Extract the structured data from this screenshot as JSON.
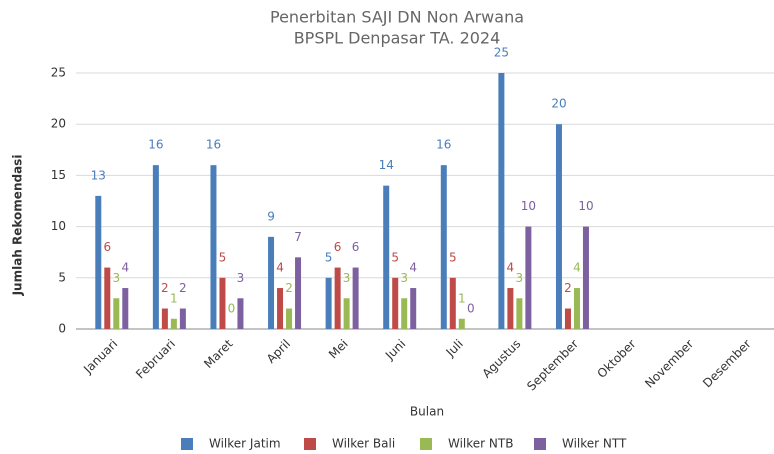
{
  "chart_data": {
    "type": "bar",
    "title": "Penerbitan SAJI DN Non Arwana",
    "subtitle": "BPSPL Denpasar TA. 2024",
    "x_label": "Bulan",
    "y_label": "Jumlah Rekomendasi",
    "categories": [
      "Januari",
      "Februari",
      "Maret",
      "April",
      "Mei",
      "Juni",
      "Juli",
      "Agustus",
      "September",
      "Oktober",
      "November",
      "Desember"
    ],
    "series": [
      {
        "name": "Wilker Jatim",
        "color": "#4a7ebb",
        "values": [
          13,
          16,
          16,
          9,
          5,
          14,
          16,
          25,
          20,
          null,
          null,
          null
        ]
      },
      {
        "name": "Wilker Bali",
        "color": "#be4b48",
        "values": [
          6,
          2,
          5,
          4,
          6,
          5,
          5,
          4,
          2,
          null,
          null,
          null
        ]
      },
      {
        "name": "Wilker NTB",
        "color": "#98b954",
        "values": [
          3,
          1,
          0,
          2,
          3,
          3,
          1,
          3,
          4,
          null,
          null,
          null
        ]
      },
      {
        "name": "Wilker NTT",
        "color": "#7d60a0",
        "values": [
          4,
          2,
          3,
          7,
          6,
          4,
          0,
          10,
          10,
          null,
          null,
          null
        ]
      }
    ],
    "ylim": [
      0,
      25
    ],
    "yticks": [
      0,
      5,
      10,
      15,
      20,
      25
    ],
    "grid": true,
    "legend": "bottom",
    "data_labels": true
  }
}
